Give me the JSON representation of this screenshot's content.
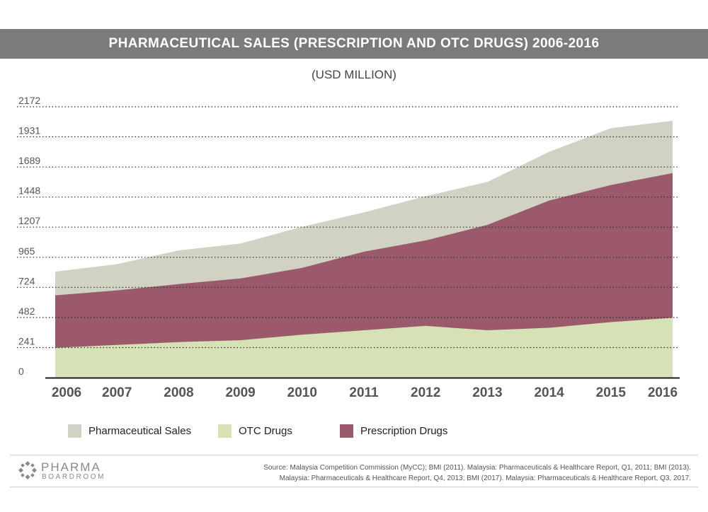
{
  "header": {
    "title": "PHARMACEUTICAL SALES (PRESCRIPTION AND OTC DRUGS) 2006-2016",
    "subtitle": "(USD MILLION)"
  },
  "chart_data": {
    "type": "area",
    "title": "PHARMACEUTICAL SALES (PRESCRIPTION AND OTC DRUGS) 2006-2016",
    "subtitle": "(USD MILLION)",
    "categories": [
      "2006",
      "2007",
      "2008",
      "2009",
      "2010",
      "2011",
      "2012",
      "2013",
      "2014",
      "2015",
      "2016"
    ],
    "y_ticks": [
      0,
      241,
      482,
      724,
      965,
      1207,
      1448,
      1689,
      1931,
      2172
    ],
    "ylim": [
      0,
      2172
    ],
    "grid": "horizontal dotted",
    "legend_position": "bottom",
    "series": [
      {
        "name": "Pharmaceutical Sales",
        "color": "#d1d1c4",
        "values": [
          850,
          910,
          1020,
          1075,
          1210,
          1325,
          1455,
          1570,
          1810,
          2000,
          2060
        ]
      },
      {
        "name": "Prescription Drugs",
        "color": "#9a5a6b",
        "values": [
          660,
          700,
          750,
          795,
          880,
          1010,
          1100,
          1225,
          1420,
          1545,
          1640
        ]
      },
      {
        "name": "OTC Drugs",
        "color": "#d6e1b6",
        "values": [
          240,
          262,
          285,
          300,
          345,
          380,
          415,
          380,
          400,
          445,
          480
        ]
      }
    ]
  },
  "legend": {
    "items": [
      {
        "label": "Pharmaceutical Sales",
        "color": "#d1d1c4"
      },
      {
        "label": "OTC Drugs",
        "color": "#d6e1b6"
      },
      {
        "label": "Prescription Drugs",
        "color": "#9a5a6b"
      }
    ]
  },
  "footer": {
    "logo_line1": "PHARMA",
    "logo_line2": "BOARDROOM",
    "source_line1": "Source: Malaysia Competition Commission (MyCC); BMI (2011). Malaysia: Pharmaceuticals & Healthcare Report, Q1, 2011; BMI (2013).",
    "source_line2": "Malaysia: Pharmaceuticals & Healthcare Report, Q4, 2013; BMI (2017). Malaysia: Pharmaceuticals & Healthcare Report, Q3, 2017."
  }
}
